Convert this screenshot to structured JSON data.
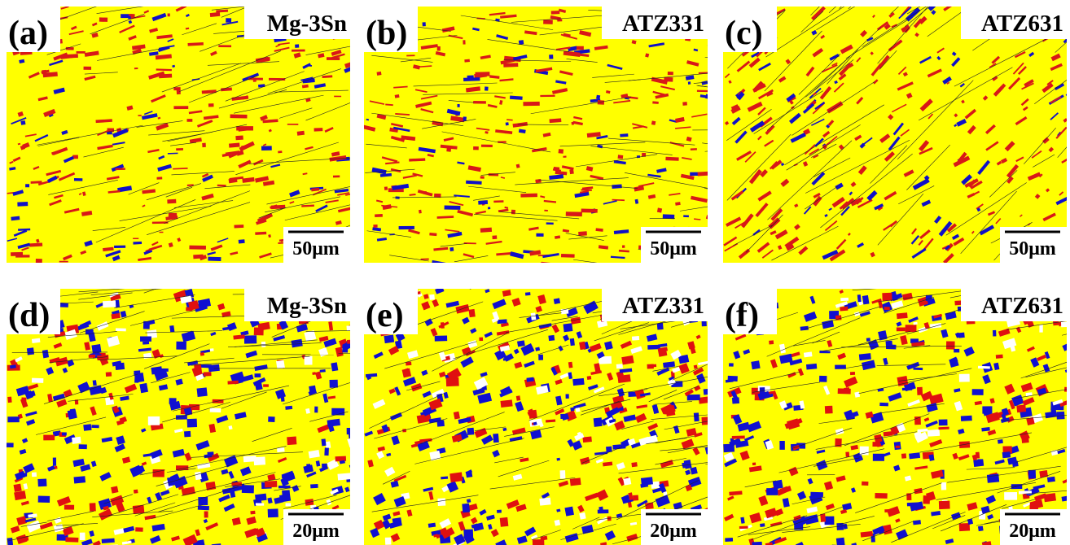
{
  "panels": [
    {
      "label": "(a)",
      "sample": "Mg-3Sn",
      "scale": "50μm"
    },
    {
      "label": "(b)",
      "sample": "ATZ331",
      "scale": "50μm"
    },
    {
      "label": "(c)",
      "sample": "ATZ631",
      "scale": "50μm"
    },
    {
      "label": "(d)",
      "sample": "Mg-3Sn",
      "scale": "20μm"
    },
    {
      "label": "(e)",
      "sample": "ATZ331",
      "scale": "20μm"
    },
    {
      "label": "(f)",
      "sample": "ATZ631",
      "scale": "20μm"
    }
  ]
}
